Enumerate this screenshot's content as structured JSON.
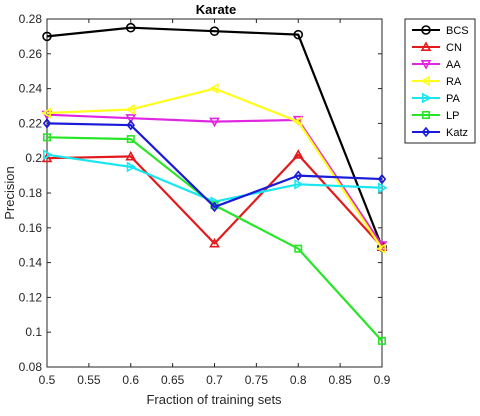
{
  "chart_data": {
    "type": "line",
    "title": "Karate",
    "xlabel": "Fraction of training sets",
    "ylabel": "Precision",
    "xlim": [
      0.5,
      0.9
    ],
    "ylim": [
      0.08,
      0.28
    ],
    "x": [
      0.5,
      0.6,
      0.7,
      0.8,
      0.9
    ],
    "x_ticks": [
      "0.5",
      "0.55",
      "0.6",
      "0.65",
      "0.7",
      "0.75",
      "0.8",
      "0.85",
      "0.9"
    ],
    "y_ticks": [
      "0.08",
      "0.1",
      "0.12",
      "0.14",
      "0.16",
      "0.18",
      "0.2",
      "0.22",
      "0.24",
      "0.26",
      "0.28"
    ],
    "grid": false,
    "legend_position": "top-right",
    "series": [
      {
        "name": "BCS",
        "color": "#000000",
        "marker": "circle",
        "values": [
          0.27,
          0.275,
          0.273,
          0.271,
          0.149
        ]
      },
      {
        "name": "CN",
        "color": "#e31a1c",
        "marker": "triangle-up",
        "values": [
          0.2,
          0.201,
          0.151,
          0.202,
          0.149
        ]
      },
      {
        "name": "AA",
        "color": "#e026e0",
        "marker": "triangle-down",
        "values": [
          0.225,
          0.223,
          0.221,
          0.222,
          0.15
        ]
      },
      {
        "name": "RA",
        "color": "#ffff1a",
        "marker": "triangle-left",
        "values": [
          0.226,
          0.228,
          0.24,
          0.221,
          0.148
        ]
      },
      {
        "name": "PA",
        "color": "#1ae6f0",
        "marker": "triangle-right",
        "values": [
          0.202,
          0.195,
          0.175,
          0.185,
          0.183
        ]
      },
      {
        "name": "LP",
        "color": "#26e626",
        "marker": "square",
        "values": [
          0.212,
          0.211,
          0.173,
          0.148,
          0.095
        ]
      },
      {
        "name": "Katz",
        "color": "#1a1ad9",
        "marker": "diamond",
        "values": [
          0.22,
          0.219,
          0.172,
          0.19,
          0.188
        ]
      }
    ]
  }
}
